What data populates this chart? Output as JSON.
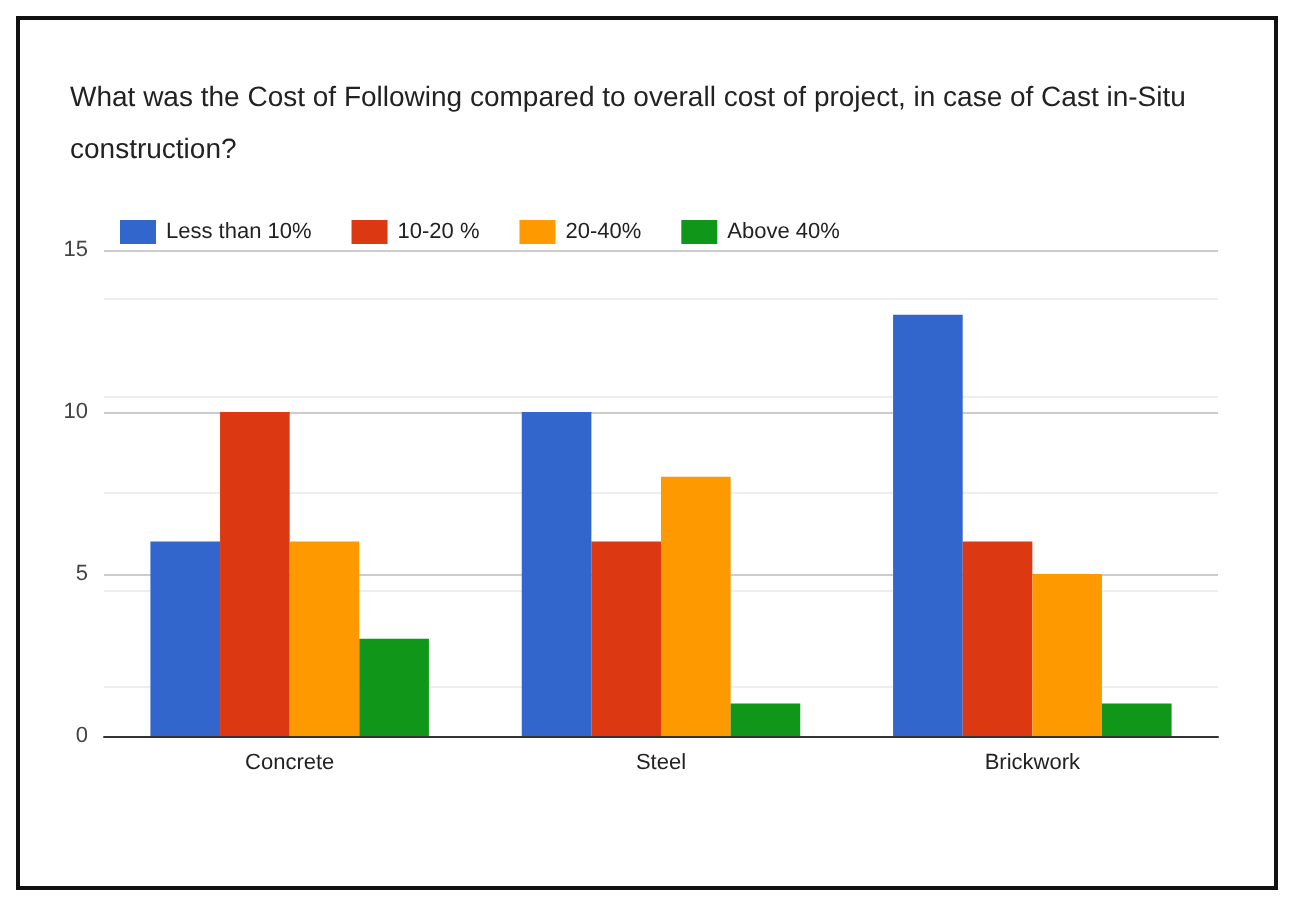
{
  "chart_data": {
    "type": "bar",
    "title": "What was the Cost of Following compared to overall cost of project, in case of Cast in-Situ construction?",
    "categories": [
      "Concrete",
      "Steel",
      "Brickwork"
    ],
    "series": [
      {
        "name": "Less than 10%",
        "color": "#3366cc",
        "values": [
          6,
          10,
          13
        ]
      },
      {
        "name": "10-20 %",
        "color": "#dc3912",
        "values": [
          10,
          6,
          6
        ]
      },
      {
        "name": "20-40%",
        "color": "#ff9900",
        "values": [
          6,
          8,
          5
        ]
      },
      {
        "name": "Above 40%",
        "color": "#109618",
        "values": [
          3,
          1,
          1
        ]
      }
    ],
    "ylim": [
      0,
      15
    ],
    "yticks": [
      0,
      5,
      10,
      15
    ],
    "grid": "y",
    "legend": "top left"
  }
}
